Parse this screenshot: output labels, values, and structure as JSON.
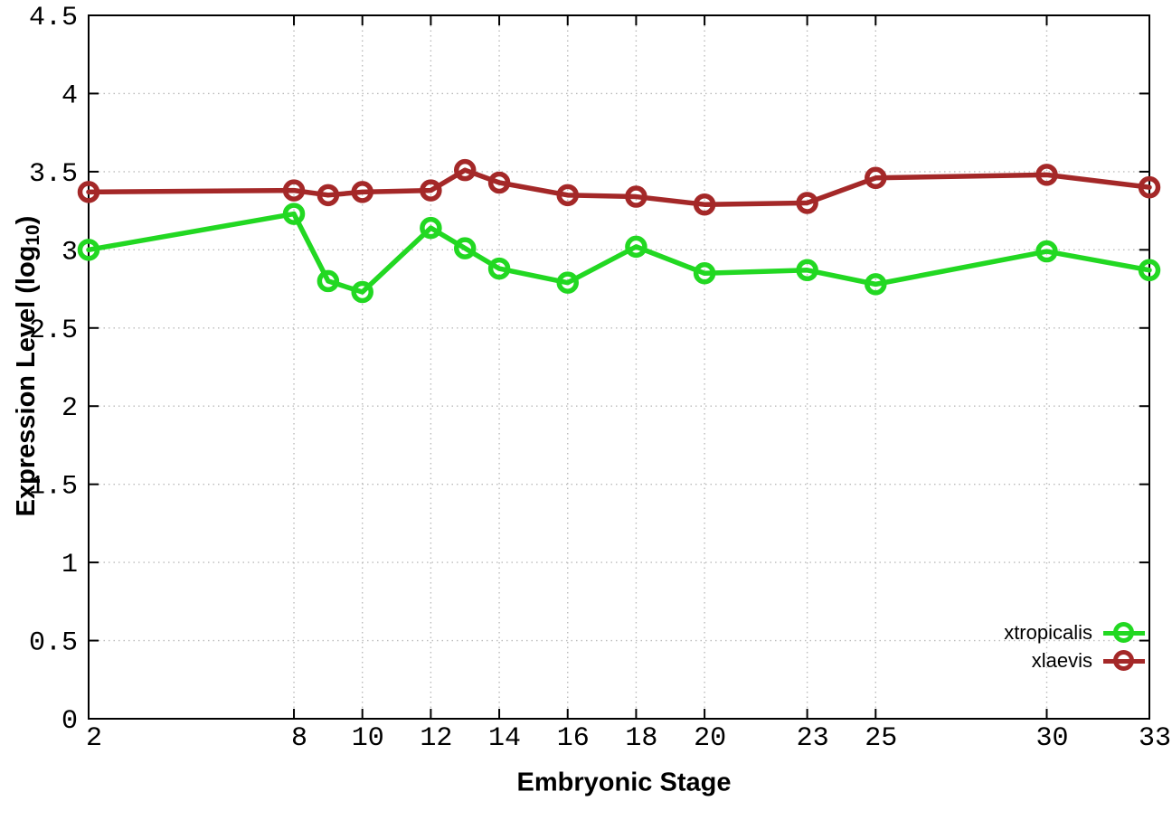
{
  "chart_data": {
    "type": "line",
    "x": [
      2,
      8,
      9,
      10,
      12,
      13,
      14,
      16,
      18,
      20,
      23,
      25,
      30,
      33
    ],
    "series": [
      {
        "name": "xtropicalis",
        "color": "#22d822",
        "values": [
          3.0,
          3.23,
          2.8,
          2.73,
          3.14,
          3.01,
          2.88,
          2.79,
          3.02,
          2.85,
          2.87,
          2.78,
          2.99,
          2.87
        ]
      },
      {
        "name": "xlaevis",
        "color": "#a42828",
        "values": [
          3.37,
          3.38,
          3.35,
          3.37,
          3.38,
          3.51,
          3.43,
          3.35,
          3.34,
          3.29,
          3.3,
          3.46,
          3.48,
          3.4
        ]
      }
    ],
    "title": "",
    "xlabel": "Embryonic Stage",
    "ylabel": "Expression Level (log10)",
    "xlim": [
      2,
      33
    ],
    "ylim": [
      0,
      4.5
    ],
    "xticks": [
      2,
      8,
      10,
      12,
      14,
      16,
      18,
      20,
      23,
      25,
      30,
      33
    ],
    "yticks": [
      0,
      0.5,
      1,
      1.5,
      2,
      2.5,
      3,
      3.5,
      4,
      4.5
    ],
    "grid": true,
    "legend_position": "bottom-right"
  },
  "labels": {
    "ylabel_prefix": "Expression Level (log",
    "ylabel_sub": "10",
    "ylabel_suffix": ")",
    "xlabel": "Embryonic Stage"
  },
  "style": {
    "grid_color": "#bbbbbb",
    "axis_color": "#000000",
    "background": "#ffffff"
  }
}
